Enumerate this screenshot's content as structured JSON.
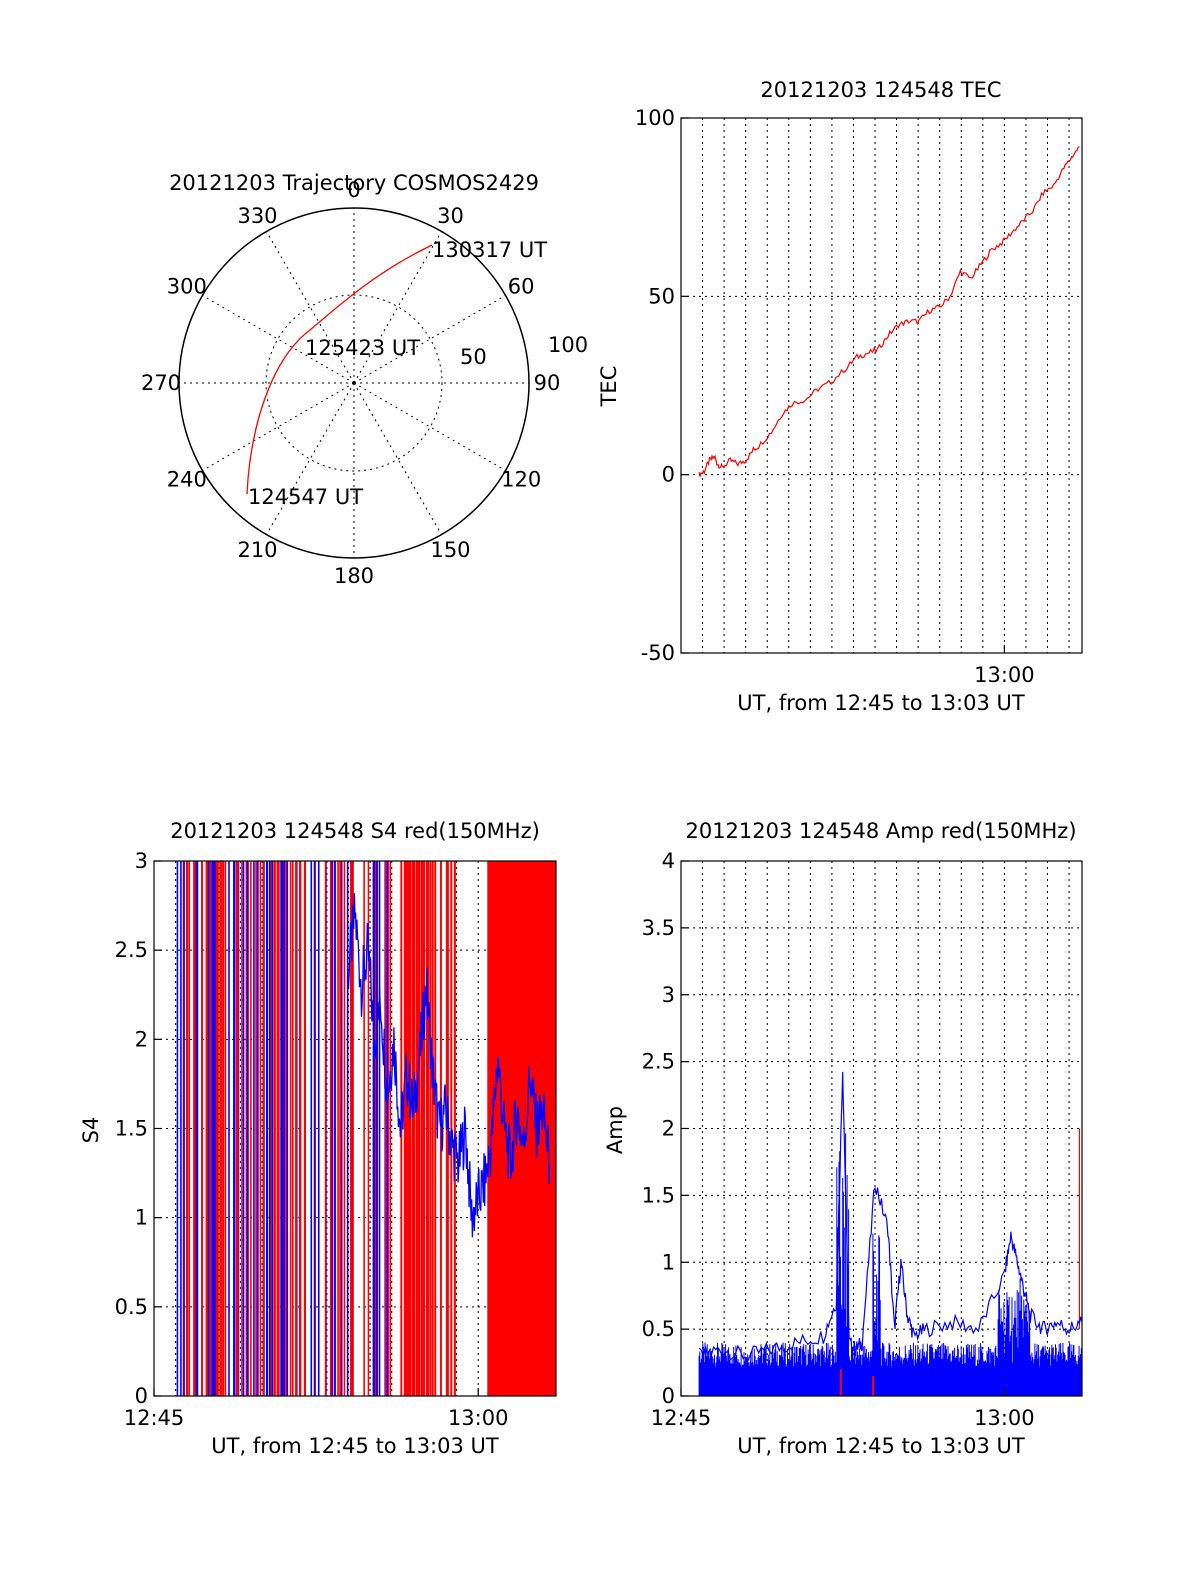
{
  "colors": {
    "red": "#ff0000",
    "blue": "#0000ff",
    "axis": "#000000"
  },
  "polar": {
    "title": "20121203 Trajectory COSMOS2429",
    "azimuth_labels": [
      "0",
      "30",
      "60",
      "90",
      "120",
      "150",
      "180",
      "210",
      "240",
      "270",
      "300",
      "330"
    ],
    "elevation_labels": [
      "50",
      "100"
    ],
    "start_label": "124547 UT",
    "mid_label": "125423 UT",
    "end_label": "130317 UT"
  },
  "chart_data": [
    {
      "type": "line",
      "panel": "tec",
      "title": "20121203 124548 TEC",
      "xlabel": "UT, from 12:45 to 13:03 UT",
      "ylabel": "TEC",
      "xlim": [
        12.75,
        13.06
      ],
      "ylim": [
        -50,
        100
      ],
      "y_ticks": [
        "100",
        "50",
        "0",
        "-50"
      ],
      "x_tick_labels": [
        "13:00"
      ],
      "grid": true,
      "series": [
        {
          "color": "red",
          "x": [
            12.764,
            12.768,
            12.772,
            12.776,
            12.778,
            12.782,
            12.788,
            12.794,
            12.8,
            12.806,
            12.81,
            12.82,
            12.828,
            12.836,
            12.846,
            12.856,
            12.866,
            12.878,
            12.886,
            12.894,
            12.902,
            12.91,
            12.918,
            12.926,
            12.934,
            12.942,
            12.95,
            12.958,
            12.966,
            12.974,
            12.982,
            12.99,
            12.998,
            13.006,
            13.014,
            13.022,
            13.03,
            13.038,
            13.046,
            13.052,
            13.058
          ],
          "y": [
            0,
            1,
            4,
            5,
            3,
            2,
            4,
            3,
            4,
            7,
            8,
            12,
            17,
            20,
            21,
            24,
            26,
            30,
            33,
            34,
            35,
            39,
            42,
            43,
            43,
            46,
            47,
            50,
            57,
            55,
            59,
            63,
            65,
            68,
            71,
            74,
            79,
            81,
            86,
            89,
            92
          ]
        }
      ]
    },
    {
      "type": "line",
      "panel": "s4",
      "title": "20121203 124548 S4 red(150MHz)",
      "xlabel": "UT, from 12:45 to 13:03 UT",
      "ylabel": "S4",
      "xlim": [
        12.75,
        13.06
      ],
      "ylim": [
        0,
        3
      ],
      "y_ticks": [
        "0",
        "0.5",
        "1",
        "1.5",
        "2",
        "2.5",
        "3"
      ],
      "x_tick_labels": [
        "12:45",
        "13:00"
      ],
      "grid": true,
      "series": [
        {
          "color": "blue",
          "x": [
            12.9,
            12.905,
            12.91,
            12.915,
            12.92,
            12.925,
            12.93,
            12.935,
            12.94,
            12.945,
            12.95,
            12.955,
            12.96,
            12.965,
            12.97,
            12.975,
            12.98,
            12.985,
            12.99,
            12.995,
            13.0,
            13.005,
            13.01,
            13.015,
            13.02,
            13.025,
            13.03,
            13.035,
            13.04,
            13.045,
            13.05,
            13.055
          ],
          "y": [
            2.4,
            2.7,
            2.3,
            2.5,
            2.0,
            2.2,
            1.7,
            2.0,
            1.5,
            1.8,
            1.6,
            1.9,
            2.3,
            1.8,
            1.5,
            1.6,
            1.4,
            1.3,
            1.5,
            1.0,
            1.1,
            1.2,
            1.4,
            1.9,
            1.5,
            1.3,
            1.6,
            1.4,
            1.8,
            1.5,
            1.6,
            1.3
          ]
        }
      ]
    },
    {
      "type": "line",
      "panel": "amp",
      "title": "20121203 124548 Amp red(150MHz)",
      "xlabel": "UT, from 12:45 to 13:03 UT",
      "ylabel": "Amp",
      "xlim": [
        12.75,
        13.06
      ],
      "ylim": [
        0,
        4
      ],
      "y_ticks": [
        "0",
        "0.5",
        "1",
        "1.5",
        "2",
        "2.5",
        "3",
        "3.5",
        "4"
      ],
      "x_tick_labels": [
        "12:45",
        "13:00"
      ],
      "grid": true,
      "series": [
        {
          "color": "blue",
          "x": [
            12.764,
            12.78,
            12.8,
            12.82,
            12.84,
            12.86,
            12.87,
            12.875,
            12.88,
            12.885,
            12.89,
            12.9,
            12.91,
            12.915,
            12.92,
            12.925,
            12.93,
            12.94,
            12.96,
            12.98,
            13.0,
            13.005,
            13.01,
            13.015,
            13.02,
            13.03,
            13.04,
            13.05,
            13.06
          ],
          "y": [
            0.3,
            0.35,
            0.3,
            0.35,
            0.4,
            0.45,
            0.7,
            2.45,
            0.4,
            0.35,
            0.4,
            1.6,
            1.25,
            0.5,
            1.0,
            0.6,
            0.45,
            0.5,
            0.55,
            0.5,
            0.9,
            1.2,
            1.0,
            0.8,
            0.6,
            0.5,
            0.55,
            0.5,
            0.55
          ]
        }
      ]
    }
  ]
}
